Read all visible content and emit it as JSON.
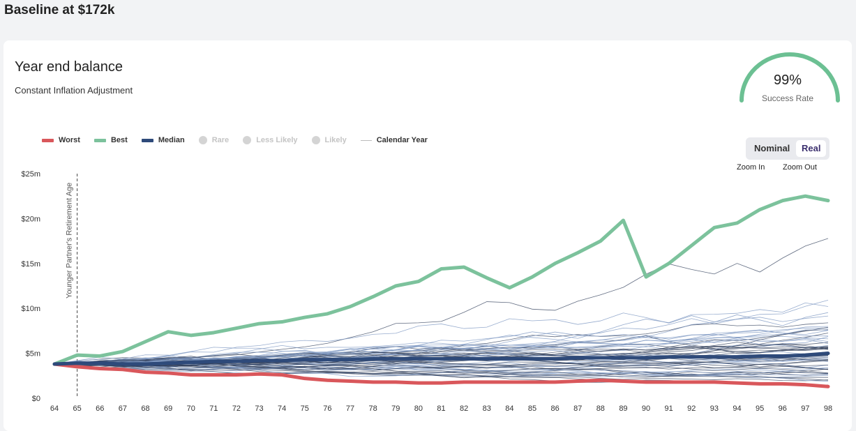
{
  "page_title": "Baseline at $172k",
  "card": {
    "title": "Year end balance",
    "subtitle": "Constant Inflation Adjustment"
  },
  "gauge": {
    "value": "99%",
    "label": "Success Rate",
    "percent": 99,
    "color": "#6cc093"
  },
  "legend": [
    {
      "label": "Worst",
      "color": "#d9575b",
      "active": true
    },
    {
      "label": "Best",
      "color": "#7cc29c",
      "active": true
    },
    {
      "label": "Median",
      "color": "#2e4a7a",
      "active": true
    },
    {
      "label": "Rare",
      "active": false
    },
    {
      "label": "Less Likely",
      "active": false
    },
    {
      "label": "Likely",
      "active": false
    },
    {
      "label": "Calendar Year",
      "active": true
    }
  ],
  "toggle": {
    "nominal": "Nominal",
    "real": "Real",
    "selected": "Real"
  },
  "zoom": {
    "in": "Zoom In",
    "out": "Zoom Out"
  },
  "chart_data": {
    "type": "line",
    "title": "Year end balance",
    "x": [
      64,
      65,
      66,
      67,
      68,
      69,
      70,
      71,
      72,
      73,
      74,
      75,
      76,
      77,
      78,
      79,
      80,
      81,
      82,
      83,
      84,
      85,
      86,
      87,
      88,
      89,
      90,
      91,
      92,
      93,
      94,
      95,
      96,
      97,
      98
    ],
    "xticks": [
      "64",
      "65",
      "66",
      "67",
      "68",
      "69",
      "70",
      "71",
      "72",
      "73",
      "74",
      "75",
      "76",
      "77",
      "78",
      "79",
      "80",
      "81",
      "82",
      "83",
      "84",
      "85",
      "86",
      "87",
      "88",
      "89",
      "90",
      "91",
      "92",
      "93",
      "94",
      "95",
      "96",
      "97",
      "98"
    ],
    "yticks": [
      "$0",
      "$5m",
      "$10m",
      "$15m",
      "$20m",
      "$25m"
    ],
    "ytick_values": [
      0,
      5,
      10,
      15,
      20,
      25
    ],
    "ylim": [
      0,
      25
    ],
    "yunit": "millions USD",
    "annotation": {
      "x": 65,
      "label": "Younger Partner's Retirement Age"
    },
    "series": [
      {
        "name": "Worst",
        "color": "#d9575b",
        "values": [
          3.8,
          3.5,
          3.3,
          3.2,
          2.9,
          2.8,
          2.6,
          2.6,
          2.6,
          2.7,
          2.6,
          2.2,
          2.0,
          1.9,
          1.8,
          1.8,
          1.7,
          1.7,
          1.8,
          1.8,
          1.8,
          1.8,
          1.8,
          1.9,
          2.0,
          1.9,
          1.8,
          1.8,
          1.8,
          1.8,
          1.7,
          1.6,
          1.6,
          1.5,
          1.3
        ]
      },
      {
        "name": "Best",
        "color": "#7cc29c",
        "values": [
          3.8,
          4.8,
          4.7,
          5.2,
          6.3,
          7.4,
          7.0,
          7.3,
          7.8,
          8.3,
          8.5,
          9.0,
          9.4,
          10.2,
          11.3,
          12.5,
          13.0,
          14.4,
          14.6,
          13.4,
          12.3,
          13.5,
          15.0,
          16.2,
          17.5,
          19.8,
          13.5,
          15.0,
          17.0,
          19.0,
          19.5,
          21.0,
          22.0,
          22.5,
          22.0
        ]
      },
      {
        "name": "Median",
        "color": "#2e4a7a",
        "values": [
          3.8,
          3.9,
          3.9,
          3.8,
          3.8,
          3.9,
          4.0,
          4.1,
          4.1,
          4.2,
          4.2,
          4.3,
          4.3,
          4.3,
          4.4,
          4.4,
          4.4,
          4.4,
          4.4,
          4.4,
          4.4,
          4.4,
          4.4,
          4.5,
          4.5,
          4.5,
          4.5,
          4.6,
          4.6,
          4.6,
          4.6,
          4.7,
          4.7,
          4.8,
          5.0
        ]
      }
    ],
    "simulation_paths": 60
  }
}
